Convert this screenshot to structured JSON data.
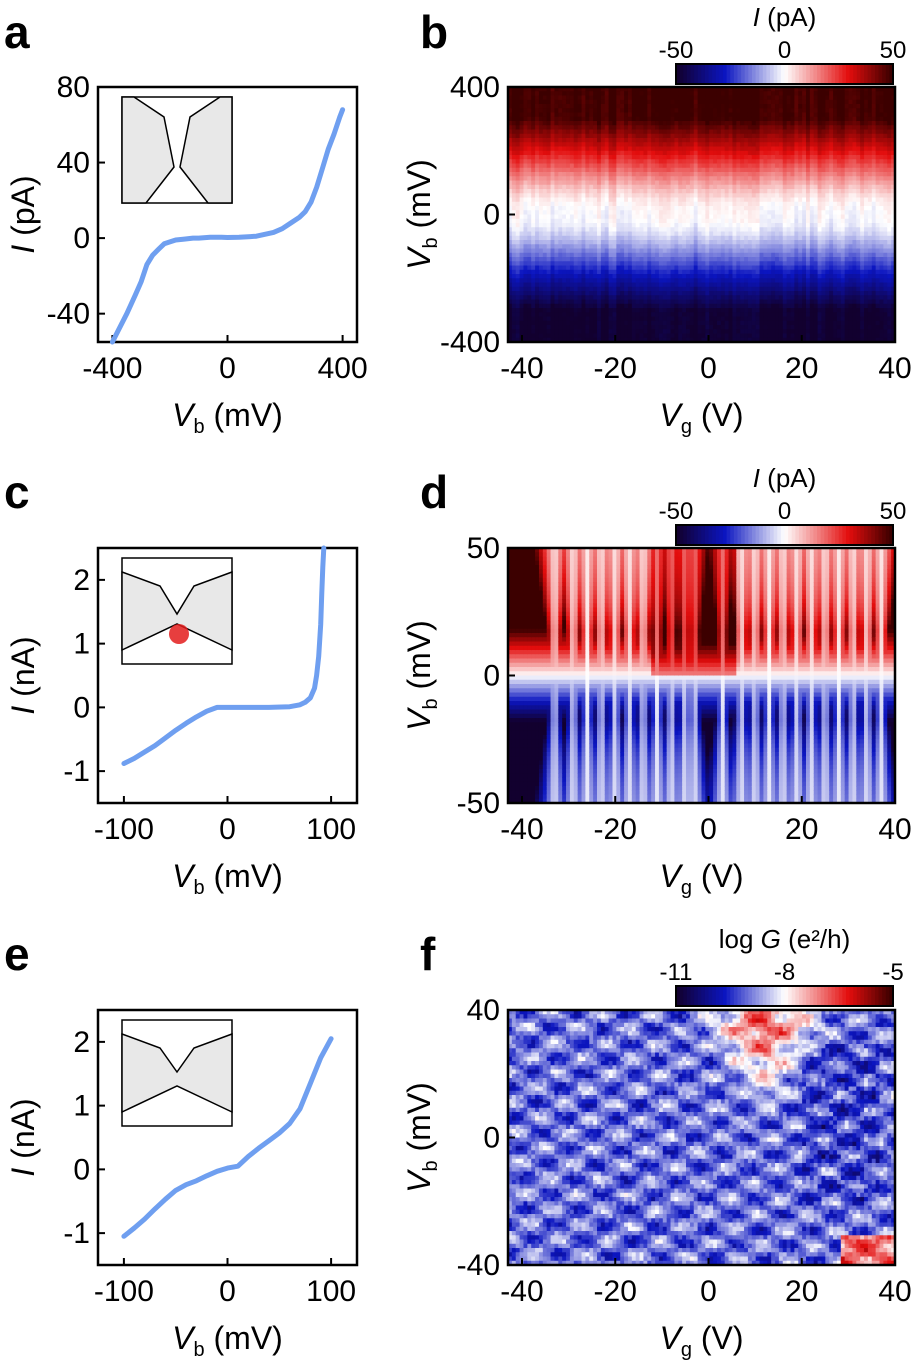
{
  "figure": {
    "panel_letters": [
      "a",
      "b",
      "c",
      "d",
      "e",
      "f"
    ]
  },
  "colors": {
    "curve": "#6f9ff0",
    "axis": "#000000",
    "inset_fill": "#e8e8e8",
    "dot": "#e31c1c",
    "map_stops": [
      "#12002f",
      "#0b15c0",
      "#ffffff",
      "#e30d0d",
      "#3c0000"
    ]
  },
  "chart_data": [
    {
      "panel": "a",
      "type": "line",
      "xlabel_main": "V",
      "xlabel_sub": "b",
      "xlabel_unit": " (mV)",
      "ylabel_main": "I",
      "ylabel_unit": " (pA)",
      "xlim": [
        -450,
        450
      ],
      "ylim": [
        -55,
        80
      ],
      "xticks": [
        -400,
        0,
        400
      ],
      "yticks": [
        -40,
        0,
        40,
        80
      ],
      "inset": "gap",
      "x": [
        -400,
        -380,
        -350,
        -320,
        -300,
        -280,
        -260,
        -240,
        -220,
        -200,
        -180,
        -150,
        -120,
        -100,
        -60,
        -20,
        0,
        40,
        80,
        100,
        130,
        160,
        190,
        220,
        250,
        270,
        290,
        310,
        330,
        350,
        370,
        390,
        400
      ],
      "y": [
        -55,
        -49,
        -40,
        -30,
        -23,
        -14,
        -9,
        -6,
        -3,
        -2,
        -1,
        -0.5,
        0,
        0,
        0.5,
        0.5,
        0.3,
        0.5,
        0.8,
        1,
        2,
        3,
        5,
        8,
        11,
        14,
        19,
        27,
        37,
        47,
        55,
        64,
        68
      ]
    },
    {
      "panel": "b",
      "type": "heatmap",
      "xlabel_main": "V",
      "xlabel_sub": "g",
      "xlabel_unit": " (V)",
      "ylabel_main": "V",
      "ylabel_sub": "b",
      "ylabel_unit": " (mV)",
      "xlim": [
        -43,
        40
      ],
      "ylim": [
        -400,
        400
      ],
      "xticks": [
        -40,
        -20,
        0,
        20,
        40
      ],
      "yticks": [
        -400,
        0,
        400
      ],
      "colorbar": {
        "label_main": "I",
        "label_unit": " (pA)",
        "ticks": [
          -50,
          0,
          50
        ]
      },
      "pattern": "bands"
    },
    {
      "panel": "c",
      "type": "line",
      "xlabel_main": "V",
      "xlabel_sub": "b",
      "xlabel_unit": " (mV)",
      "ylabel_main": "I",
      "ylabel_unit": " (nA)",
      "xlim": [
        -125,
        125
      ],
      "ylim": [
        -1.5,
        2.5
      ],
      "xticks": [
        -100,
        0,
        100
      ],
      "yticks": [
        -1,
        0,
        1,
        2
      ],
      "inset": "dot",
      "x": [
        -100,
        -90,
        -80,
        -70,
        -60,
        -50,
        -40,
        -30,
        -20,
        -10,
        0,
        20,
        40,
        60,
        70,
        75,
        80,
        84,
        86,
        88,
        90,
        91,
        92,
        93
      ],
      "y": [
        -0.88,
        -0.8,
        -0.7,
        -0.6,
        -0.48,
        -0.36,
        -0.25,
        -0.15,
        -0.06,
        0,
        0,
        0,
        0,
        0.01,
        0.04,
        0.08,
        0.15,
        0.3,
        0.5,
        0.8,
        1.3,
        1.8,
        2.2,
        2.5
      ]
    },
    {
      "panel": "d",
      "type": "heatmap",
      "xlabel_main": "V",
      "xlabel_sub": "g",
      "xlabel_unit": " (V)",
      "ylabel_main": "V",
      "ylabel_sub": "b",
      "ylabel_unit": " (mV)",
      "xlim": [
        -43,
        40
      ],
      "ylim": [
        -50,
        50
      ],
      "xticks": [
        -40,
        -20,
        0,
        20,
        40
      ],
      "yticks": [
        -50,
        0,
        50
      ],
      "colorbar": {
        "label_main": "I",
        "label_unit": " (pA)",
        "ticks": [
          -50,
          0,
          50
        ]
      },
      "pattern": "diamonds"
    },
    {
      "panel": "e",
      "type": "line",
      "xlabel_main": "V",
      "xlabel_sub": "b",
      "xlabel_unit": " (mV)",
      "ylabel_main": "I",
      "ylabel_unit": " (nA)",
      "xlim": [
        -125,
        125
      ],
      "ylim": [
        -1.5,
        2.5
      ],
      "xticks": [
        -100,
        0,
        100
      ],
      "yticks": [
        -1,
        0,
        1,
        2
      ],
      "inset": "narrow",
      "x": [
        -100,
        -90,
        -80,
        -70,
        -60,
        -50,
        -40,
        -30,
        -20,
        -10,
        0,
        10,
        20,
        30,
        40,
        50,
        60,
        70,
        80,
        90,
        100
      ],
      "y": [
        -1.05,
        -0.92,
        -0.78,
        -0.62,
        -0.47,
        -0.33,
        -0.24,
        -0.18,
        -0.1,
        -0.03,
        0.02,
        0.05,
        0.2,
        0.33,
        0.45,
        0.57,
        0.72,
        0.95,
        1.35,
        1.75,
        2.05
      ]
    },
    {
      "panel": "f",
      "type": "heatmap",
      "xlabel_main": "V",
      "xlabel_sub": "g",
      "xlabel_unit": " (V)",
      "ylabel_main": "V",
      "ylabel_sub": "b",
      "ylabel_unit": " (mV)",
      "xlim": [
        -43,
        40
      ],
      "ylim": [
        -40,
        40
      ],
      "xticks": [
        -40,
        -20,
        0,
        20,
        40
      ],
      "yticks": [
        -40,
        0,
        40
      ],
      "colorbar": {
        "label_main": "log G",
        "label_unit": " (e²/h)",
        "ticks": [
          -11,
          -8,
          -5
        ]
      },
      "pattern": "conductance"
    }
  ]
}
